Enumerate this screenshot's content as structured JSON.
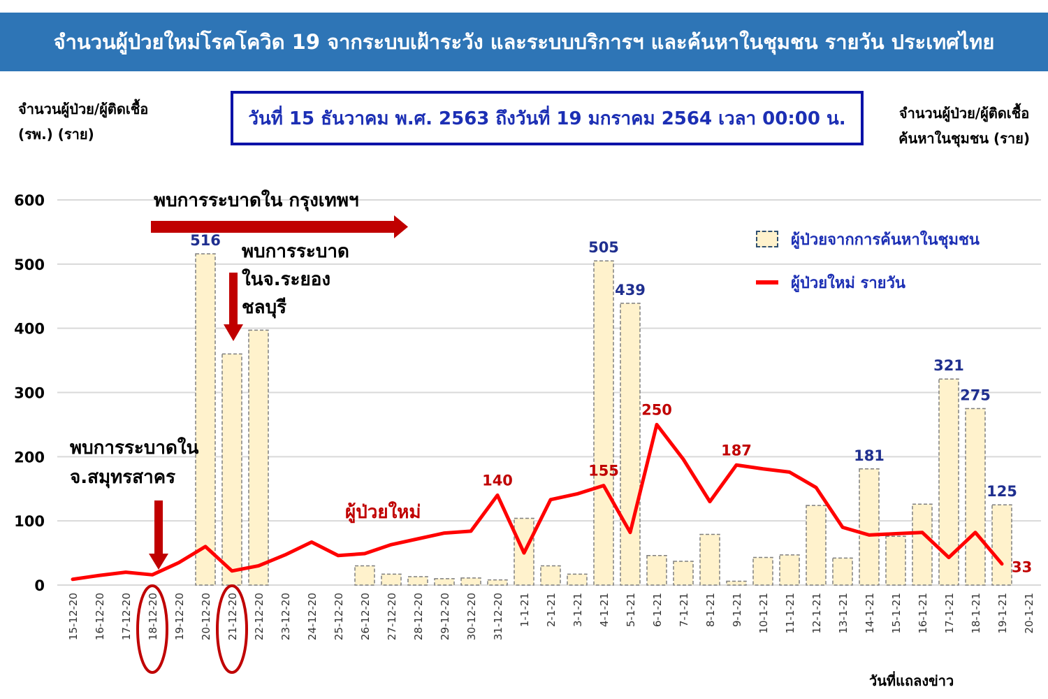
{
  "header": {
    "title": "จำนวนผู้ป่วยใหม่โรคโควิด 19 จากระบบเฝ้าระวัง และระบบบริการฯ และค้นหาในชุมชน รายวัน ประเทศไทย",
    "date_range": "วันที่ 15 ธันวาคม พ.ศ. 2563 ถึงวันที่ 19 มกราคม 2564 เวลา 00:00 น."
  },
  "axes": {
    "left_label_line1": "จำนวนผู้ป่วย/ผู้ติดเชื้อ",
    "left_label_line2": "(รพ.) (ราย)",
    "right_label_line1": "จำนวนผู้ป่วย/ผู้ติดเชื้อ",
    "right_label_line2": "ค้นหาในชุมชน (ราย)",
    "x_caption": "วันที่แถลงข่าว"
  },
  "legend": {
    "bar_label": "ผู้ป่วยจากการค้นหาในชุมชน",
    "line_label": "ผู้ป่วยใหม่ รายวัน"
  },
  "annotations": {
    "bangkok": "พบการระบาดใน กรุงเทพฯ",
    "rayong_line1": "พบการระบาด",
    "rayong_line2": "ในจ.ระยอง",
    "rayong_line3": "ชลบุรี",
    "samut_line1": "พบการระบาดใน",
    "samut_line2": "จ.สมุทรสาคร",
    "line_series_label": "ผู้ป่วยใหม่"
  },
  "chart_data": {
    "type": "bar",
    "categories": [
      "15-12-20",
      "16-12-20",
      "17-12-20",
      "18-12-20",
      "19-12-20",
      "20-12-20",
      "21-12-20",
      "22-12-20",
      "23-12-20",
      "24-12-20",
      "25-12-20",
      "26-12-20",
      "27-12-20",
      "28-12-20",
      "29-12-20",
      "30-12-20",
      "31-12-20",
      "1-1-21",
      "2-1-21",
      "3-1-21",
      "4-1-21",
      "5-1-21",
      "6-1-21",
      "7-1-21",
      "8-1-21",
      "9-1-21",
      "10-1-21",
      "11-1-21",
      "12-1-21",
      "13-1-21",
      "14-1-21",
      "15-1-21",
      "16-1-21",
      "17-1-21",
      "18-1-21",
      "19-1-21",
      "20-1-21"
    ],
    "ylim": [
      0,
      600
    ],
    "yticks": [
      0,
      100,
      200,
      300,
      400,
      500,
      600
    ],
    "grid": true,
    "legend_position": "top-right",
    "series": [
      {
        "name": "ผู้ป่วยจากการค้นหาในชุมชน",
        "kind": "bar",
        "color": "#fff2cc",
        "values": [
          0,
          0,
          0,
          0,
          0,
          516,
          360,
          397,
          0,
          0,
          0,
          30,
          17,
          13,
          10,
          11,
          8,
          104,
          30,
          17,
          505,
          439,
          46,
          37,
          79,
          6,
          43,
          47,
          124,
          42,
          181,
          76,
          126,
          321,
          275,
          125,
          0
        ]
      },
      {
        "name": "ผู้ป่วยใหม่ รายวัน",
        "kind": "line",
        "color": "#ff0000",
        "values": [
          9,
          15,
          20,
          16,
          35,
          60,
          22,
          30,
          47,
          67,
          46,
          49,
          63,
          72,
          81,
          84,
          140,
          50,
          133,
          142,
          155,
          82,
          250,
          196,
          130,
          187,
          181,
          176,
          152,
          90,
          78,
          80,
          82,
          43,
          82,
          33,
          null
        ]
      }
    ],
    "bar_data_labels": {
      "5": "516",
      "20": "505",
      "21": "439",
      "30": "181",
      "33": "321",
      "34": "275",
      "35": "125"
    },
    "line_data_labels": {
      "16": "140",
      "20": "155",
      "22": "250",
      "25": "187",
      "35": "33"
    }
  }
}
